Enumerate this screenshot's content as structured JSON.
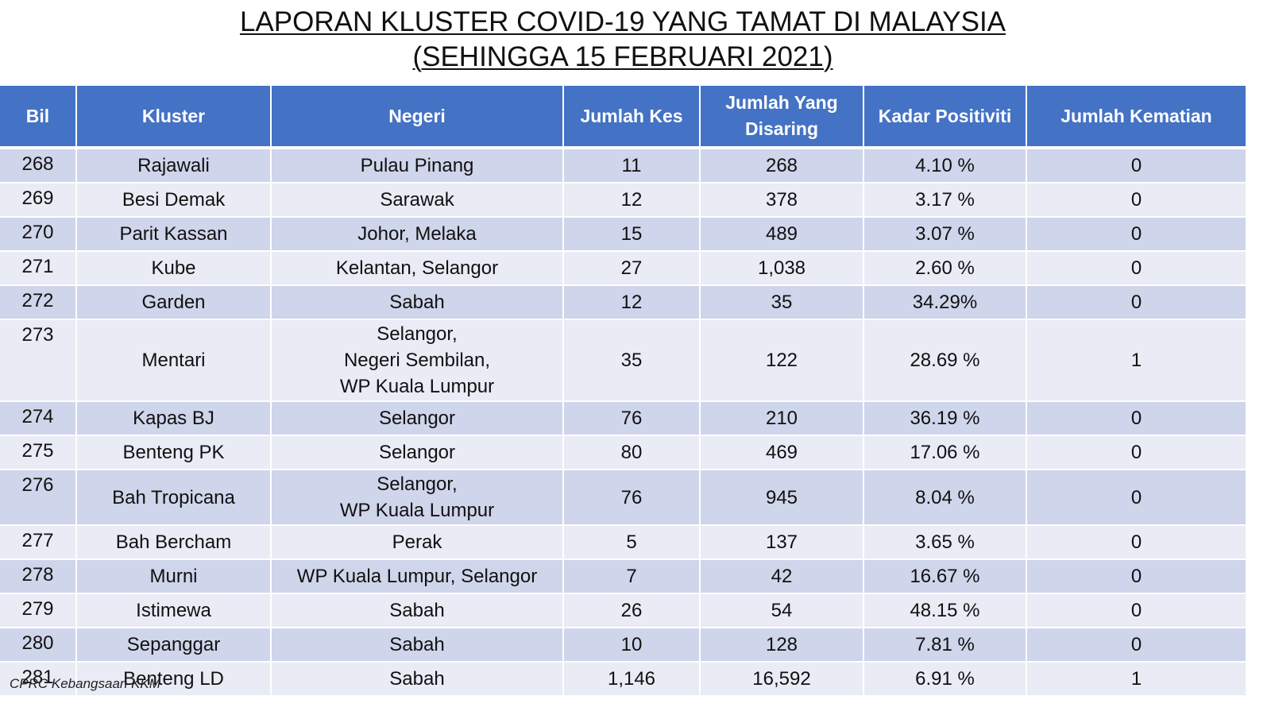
{
  "title": {
    "line1": "LAPORAN KLUSTER COVID-19 YANG TAMAT DI MALAYSIA",
    "line2": "(SEHINGGA 15 FEBRUARI 2021)"
  },
  "table": {
    "headers": [
      "Bil",
      "Kluster",
      "Negeri",
      "Jumlah Kes",
      "Jumlah Yang Disaring",
      "Kadar Positiviti",
      "Jumlah Kematian"
    ],
    "rows": [
      {
        "bil": "268",
        "kluster": "Rajawali",
        "negeri": [
          "Pulau Pinang"
        ],
        "kes": "11",
        "disaring": "268",
        "positiviti": "4.10 %",
        "kematian": "0"
      },
      {
        "bil": "269",
        "kluster": "Besi Demak",
        "negeri": [
          "Sarawak"
        ],
        "kes": "12",
        "disaring": "378",
        "positiviti": "3.17 %",
        "kematian": "0"
      },
      {
        "bil": "270",
        "kluster": "Parit Kassan",
        "negeri": [
          "Johor, Melaka"
        ],
        "kes": "15",
        "disaring": "489",
        "positiviti": "3.07 %",
        "kematian": "0"
      },
      {
        "bil": "271",
        "kluster": "Kube",
        "negeri": [
          "Kelantan, Selangor"
        ],
        "kes": "27",
        "disaring": "1,038",
        "positiviti": "2.60 %",
        "kematian": "0"
      },
      {
        "bil": "272",
        "kluster": "Garden",
        "negeri": [
          "Sabah"
        ],
        "kes": "12",
        "disaring": "35",
        "positiviti": "34.29%",
        "kematian": "0"
      },
      {
        "bil": "273",
        "kluster": "Mentari",
        "negeri": [
          "Selangor,",
          "Negeri Sembilan,",
          "WP Kuala Lumpur"
        ],
        "kes": "35",
        "disaring": "122",
        "positiviti": "28.69 %",
        "kematian": "1"
      },
      {
        "bil": "274",
        "kluster": "Kapas BJ",
        "negeri": [
          "Selangor"
        ],
        "kes": "76",
        "disaring": "210",
        "positiviti": "36.19 %",
        "kematian": "0"
      },
      {
        "bil": "275",
        "kluster": "Benteng PK",
        "negeri": [
          "Selangor"
        ],
        "kes": "80",
        "disaring": "469",
        "positiviti": "17.06 %",
        "kematian": "0"
      },
      {
        "bil": "276",
        "kluster": "Bah Tropicana",
        "negeri": [
          "Selangor,",
          "WP Kuala Lumpur"
        ],
        "kes": "76",
        "disaring": "945",
        "positiviti": "8.04 %",
        "kematian": "0"
      },
      {
        "bil": "277",
        "kluster": "Bah Bercham",
        "negeri": [
          "Perak"
        ],
        "kes": "5",
        "disaring": "137",
        "positiviti": "3.65 %",
        "kematian": "0"
      },
      {
        "bil": "278",
        "kluster": "Murni",
        "negeri": [
          "WP Kuala Lumpur, Selangor"
        ],
        "kes": "7",
        "disaring": "42",
        "positiviti": "16.67 %",
        "kematian": "0"
      },
      {
        "bil": "279",
        "kluster": "Istimewa",
        "negeri": [
          "Sabah"
        ],
        "kes": "26",
        "disaring": "54",
        "positiviti": "48.15 %",
        "kematian": "0"
      },
      {
        "bil": "280",
        "kluster": "Sepanggar",
        "negeri": [
          "Sabah"
        ],
        "kes": "10",
        "disaring": "128",
        "positiviti": "7.81 %",
        "kematian": "0"
      },
      {
        "bil": "281",
        "kluster": "Benteng LD",
        "negeri": [
          "Sabah"
        ],
        "kes": "1,146",
        "disaring": "16,592",
        "positiviti": "6.91 %",
        "kematian": "1"
      }
    ]
  },
  "footer": "CPRC Kebangsaan KKM",
  "colors": {
    "header_bg": "#4472c4",
    "row_band": "#cfd5ea",
    "row_plain": "#e9ebf5"
  }
}
